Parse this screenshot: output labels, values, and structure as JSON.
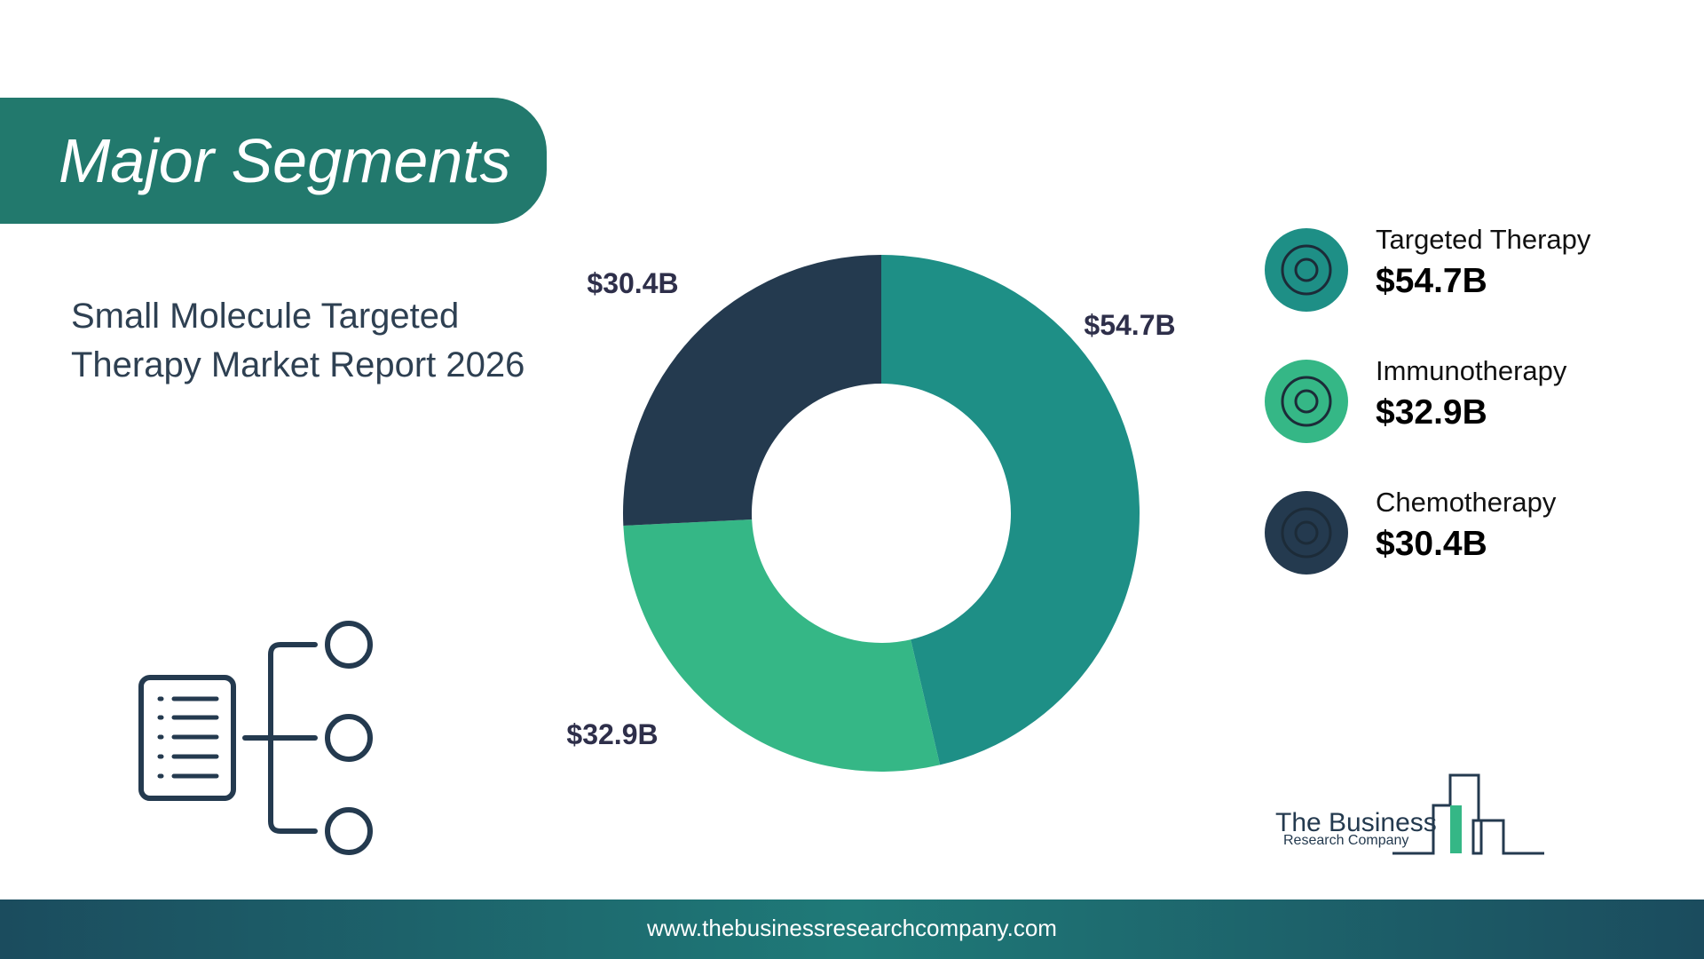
{
  "chart_data": {
    "type": "donut",
    "title": "Major Segments",
    "subtitle": [
      "Small Molecule Targeted",
      "Therapy Market Report 2026"
    ],
    "categories": [
      "Targeted Therapy",
      "Immunotherapy",
      "Chemotherapy"
    ],
    "values": [
      54.7,
      32.9,
      30.4
    ],
    "value_labels": [
      "$54.7B",
      "$32.9B",
      "$30.4B"
    ],
    "colors": [
      "#1e8f86",
      "#35b786",
      "#243a4f"
    ]
  },
  "logo": {
    "line1": "The Business",
    "line2": "Research Company"
  },
  "footer": {
    "url": "www.thebusinessresearchcompany.com"
  }
}
